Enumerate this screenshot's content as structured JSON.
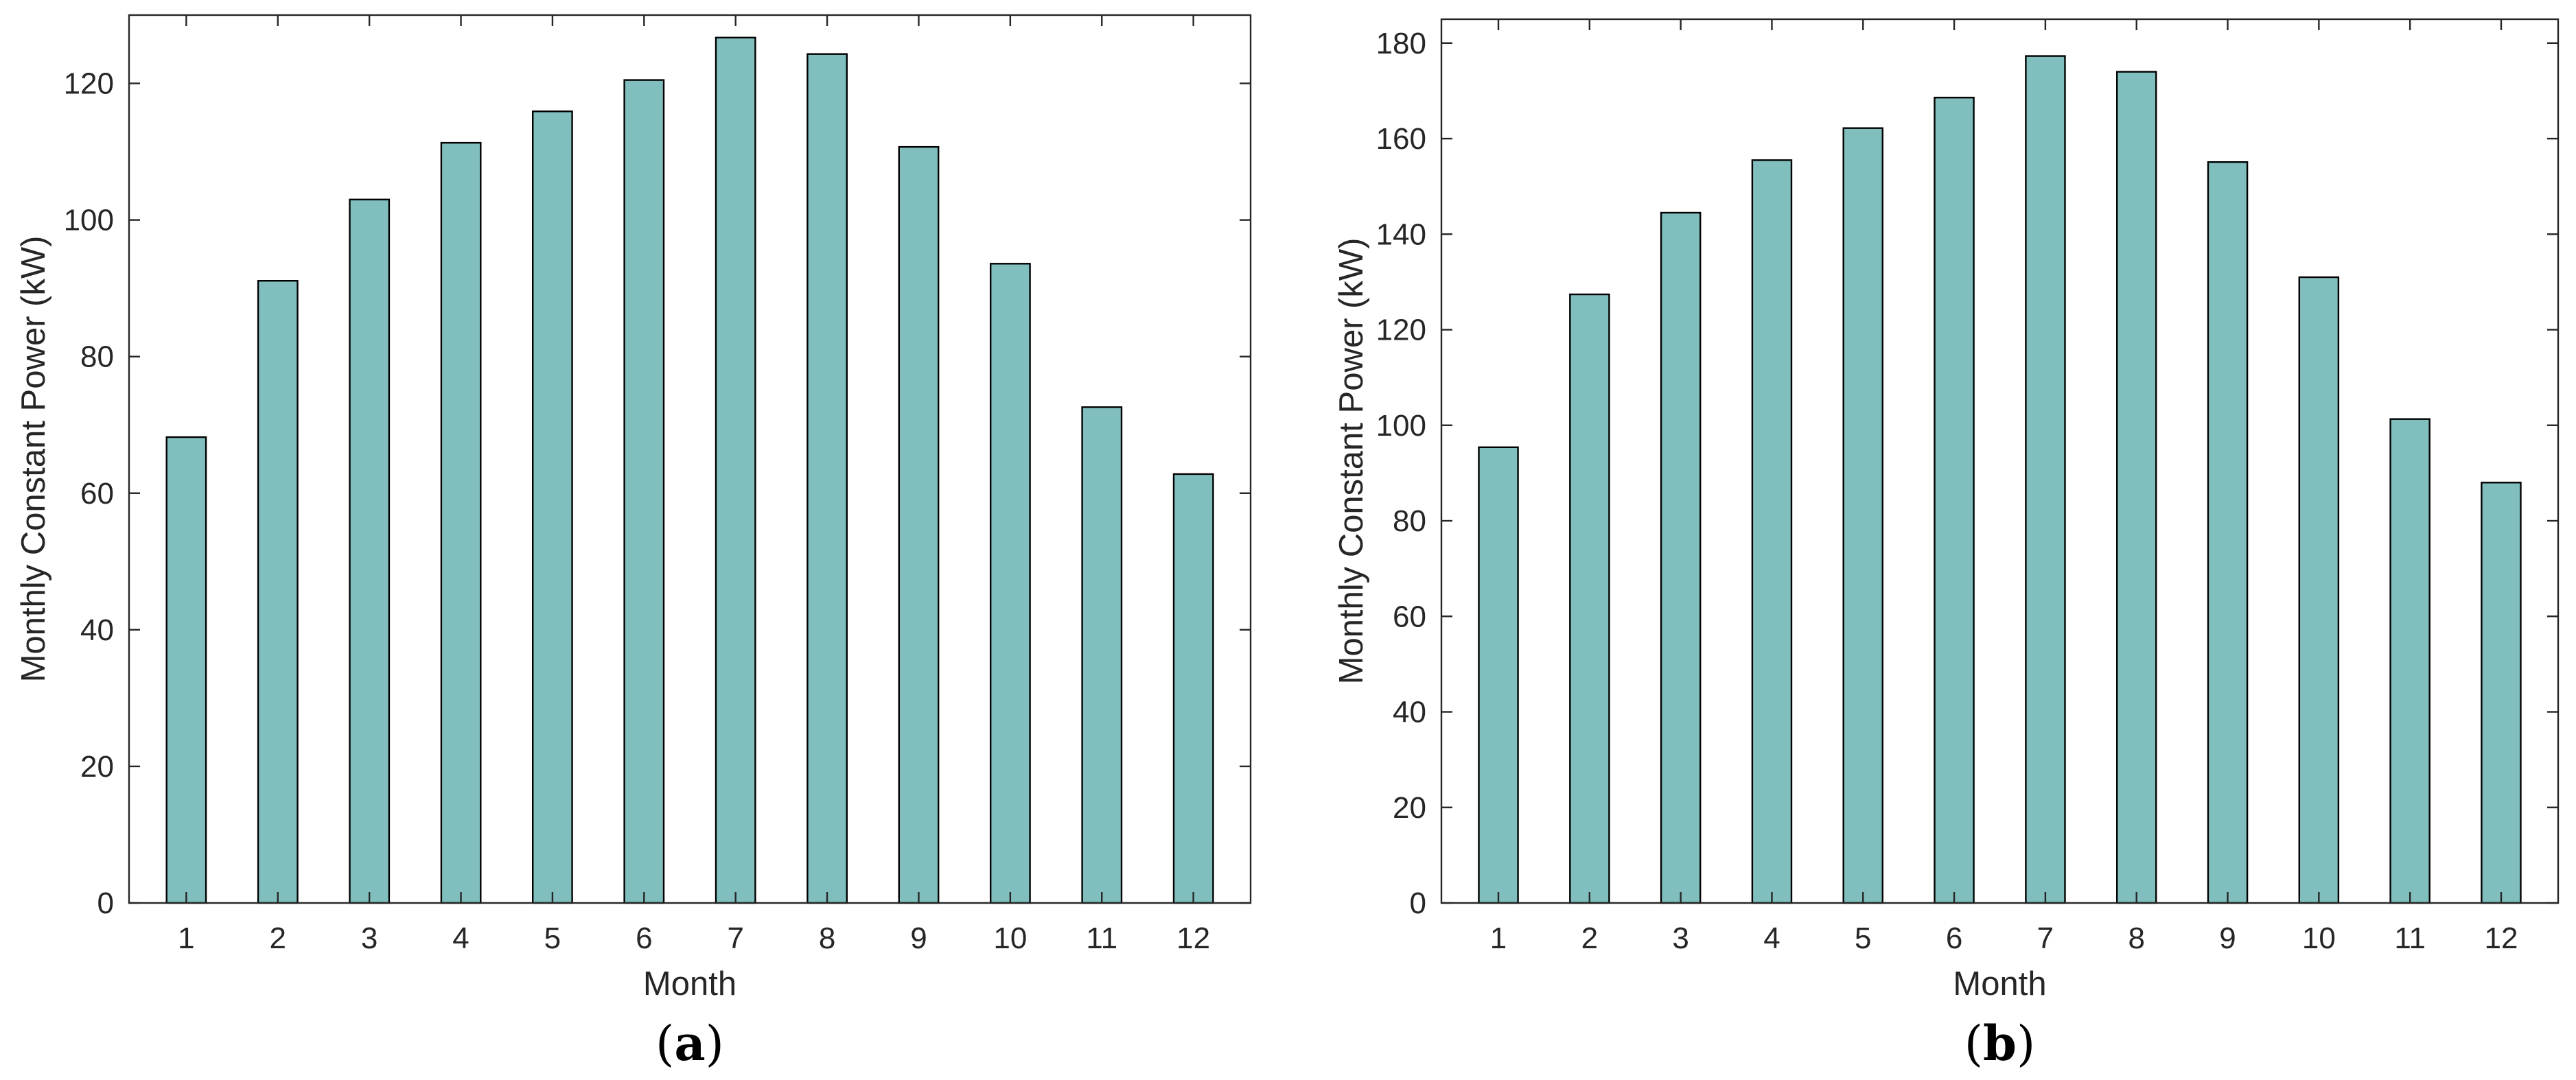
{
  "chart_data": [
    {
      "type": "bar",
      "panel_label": "a",
      "xlabel": "Month",
      "ylabel": "Monthly Constant Power (kW)",
      "categories": [
        "1",
        "2",
        "3",
        "4",
        "5",
        "6",
        "7",
        "8",
        "9",
        "10",
        "11",
        "12"
      ],
      "values": [
        68.2,
        91.1,
        103.0,
        111.3,
        115.9,
        120.5,
        126.7,
        124.3,
        110.7,
        93.6,
        72.6,
        62.8
      ],
      "ylim": [
        0,
        130
      ],
      "yticks": [
        0,
        20,
        40,
        60,
        80,
        100,
        120
      ],
      "bar_color": "#80bfbe",
      "edge_color": "#000000",
      "grid": false,
      "legend": "none"
    },
    {
      "type": "bar",
      "panel_label": "b",
      "xlabel": "Month",
      "ylabel": "Monthly Constant Power (kW)",
      "categories": [
        "1",
        "2",
        "3",
        "4",
        "5",
        "6",
        "7",
        "8",
        "9",
        "10",
        "11",
        "12"
      ],
      "values": [
        95.4,
        127.4,
        144.5,
        155.5,
        162.2,
        168.6,
        177.3,
        174.0,
        155.1,
        131.0,
        101.3,
        88.0
      ],
      "ylim": [
        0,
        185
      ],
      "yticks": [
        0,
        20,
        40,
        60,
        80,
        100,
        120,
        140,
        160,
        180
      ],
      "bar_color": "#80bfbe",
      "edge_color": "#000000",
      "grid": false,
      "legend": "none"
    }
  ]
}
